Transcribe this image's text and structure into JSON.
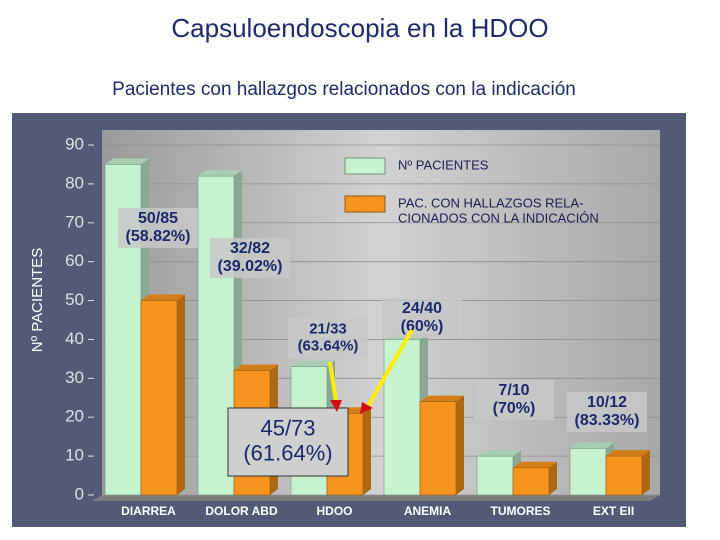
{
  "chart_data": {
    "type": "bar3d",
    "title": "Capsuloendoscopia en la HDOO",
    "subtitle": "Pacientes con hallazgos relacionados con la indicación",
    "ylabel": "Nº PACIENTES",
    "categories": [
      "DIARREA",
      "DOLOR ABD",
      "HDOO",
      "ANEMIA",
      "TUMORES",
      "EXT EII"
    ],
    "series": [
      {
        "name": "Nº PACIENTES",
        "color": "#c6f2d0",
        "values": [
          85,
          82,
          33,
          40,
          10,
          12
        ]
      },
      {
        "name": "PAC. CON HALLAZGOS RELA-\nCIONADOS CON LA INDICACIÓN",
        "color": "#f7941d",
        "values": [
          50,
          32,
          21,
          24,
          7,
          10
        ]
      }
    ],
    "annotations": [
      "50/85\n(58.82%)",
      "32/82\n(39.02%)",
      "21/33\n(63.64%)",
      "24/40\n(60%)",
      "7/10\n(70%)",
      "10/12\n(83.33%)",
      "45/73\n(61.64%)"
    ],
    "ylim": [
      0,
      90
    ],
    "yticks": [
      0,
      10,
      20,
      30,
      40,
      50,
      60,
      70,
      80,
      90
    ],
    "grid": true,
    "legend": "upper right"
  }
}
